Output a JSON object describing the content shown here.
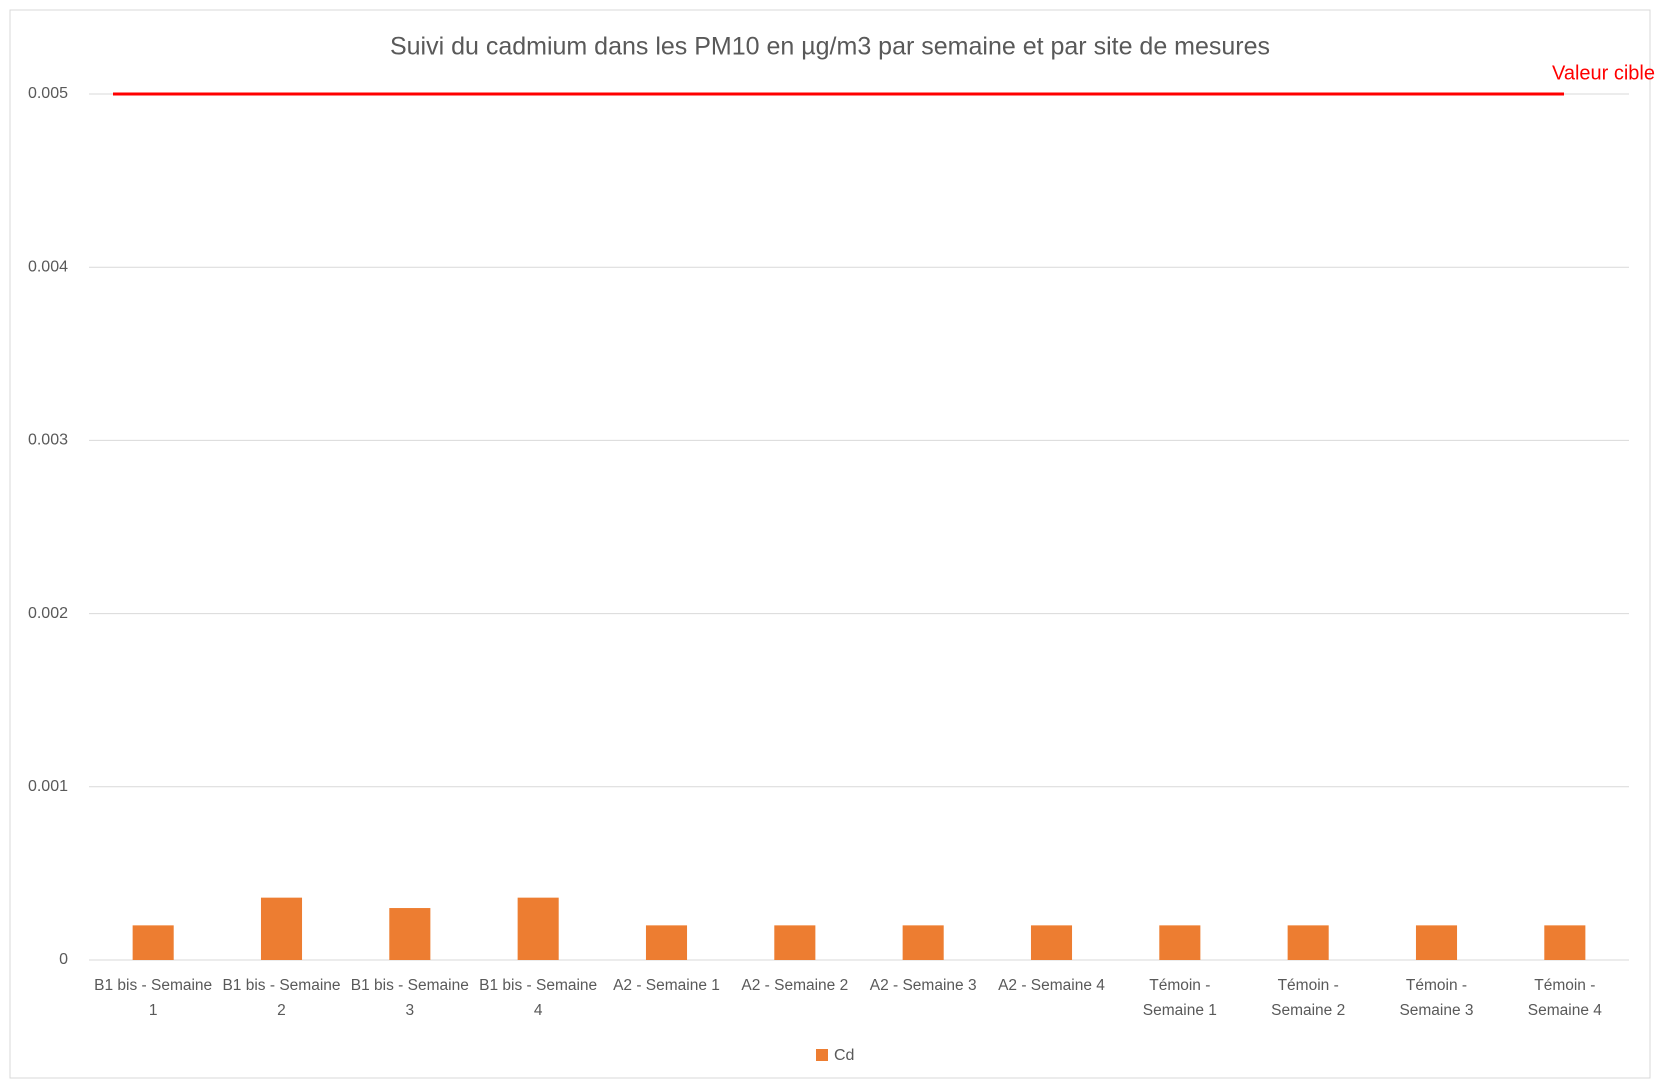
{
  "chart_data": {
    "type": "bar",
    "title": "Suivi du cadmium dans les PM10 en µg/m3 par semaine et par site de mesures",
    "categories": [
      "B1 bis - Semaine 1",
      "B1 bis - Semaine 2",
      "B1 bis - Semaine 3",
      "B1 bis - Semaine 4",
      "A2 - Semaine 1",
      "A2 - Semaine 2",
      "A2 - Semaine 3",
      "A2 - Semaine 4",
      "Témoin - Semaine 1",
      "Témoin - Semaine 2",
      "Témoin - Semaine 3",
      "Témoin - Semaine 4"
    ],
    "series": [
      {
        "name": "Cd",
        "color": "#ed7d31",
        "values": [
          0.0002,
          0.00036,
          0.0003,
          0.00036,
          0.0002,
          0.0002,
          0.0002,
          0.0002,
          0.0002,
          0.0002,
          0.0002,
          0.0002
        ]
      }
    ],
    "reference_line": {
      "value": 0.005,
      "label": "Valeur cible",
      "color": "#ff0000"
    },
    "ylim": [
      0,
      0.005
    ],
    "yticks": [
      0,
      0.001,
      0.002,
      0.003,
      0.004,
      0.005
    ],
    "grid": true,
    "legend": "bottom"
  }
}
